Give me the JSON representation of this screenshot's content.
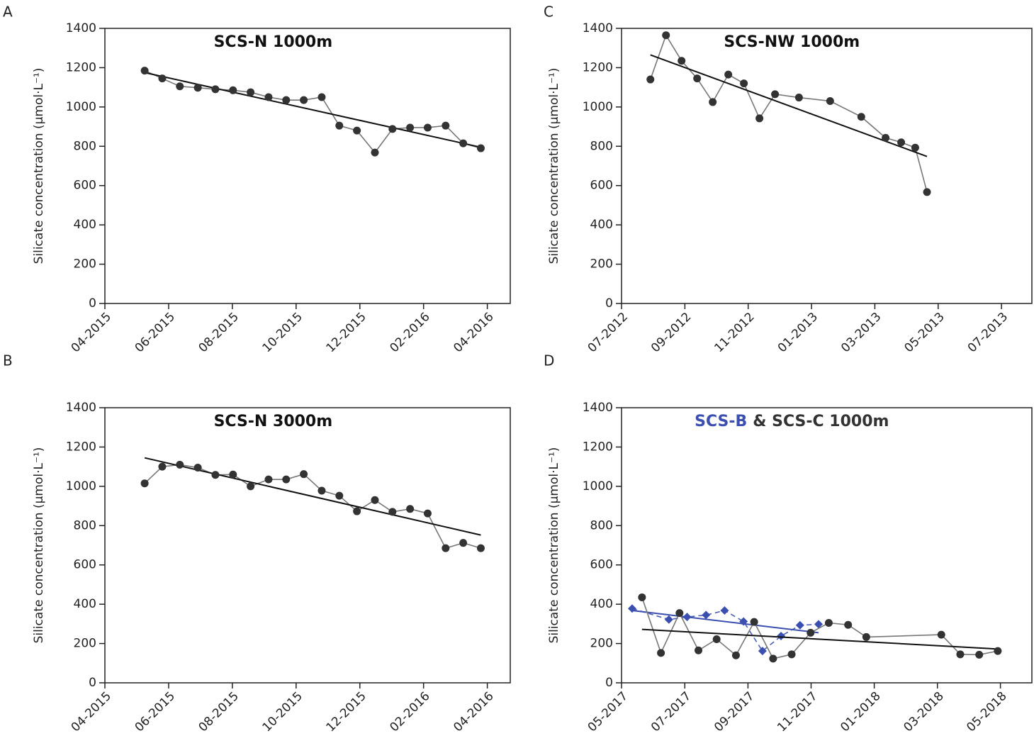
{
  "chart_data": [
    {
      "type": "line",
      "panel": "A",
      "title": [
        "SCS-N 1000m"
      ],
      "ylabel": "Silicate concentration (μmol·L⁻¹)",
      "xlim": [
        2015.25,
        2016.31
      ],
      "ylim": [
        0,
        1400
      ],
      "yticks": [
        0,
        200,
        400,
        600,
        800,
        1000,
        1200,
        1400
      ],
      "xticks": [
        {
          "value": 2015.25,
          "label": "04-2015"
        },
        {
          "value": 2015.4167,
          "label": "06-2015"
        },
        {
          "value": 2015.5833,
          "label": "08-2015"
        },
        {
          "value": 2015.75,
          "label": "10-2015"
        },
        {
          "value": 2015.9167,
          "label": "12-2015"
        },
        {
          "value": 2016.0833,
          "label": "02-2016"
        },
        {
          "value": 2016.25,
          "label": "04-2016"
        }
      ],
      "series": [
        {
          "color": "#333333",
          "line_color": "#777777",
          "marker": "circle",
          "dashed": false,
          "x": [
            2015.354,
            2015.4,
            2015.446,
            2015.493,
            2015.539,
            2015.585,
            2015.631,
            2015.678,
            2015.724,
            2015.77,
            2015.817,
            2015.863,
            2015.909,
            2015.956,
            2016.002,
            2016.048,
            2016.094,
            2016.141,
            2016.187,
            2016.233
          ],
          "values": [
            1185,
            1145,
            1105,
            1098,
            1090,
            1085,
            1075,
            1050,
            1035,
            1035,
            1050,
            905,
            880,
            768,
            888,
            895,
            895,
            905,
            815,
            790
          ],
          "trend": {
            "color": "#111111",
            "x": [
              2015.354,
              2016.233
            ],
            "values": [
              1175,
              795
            ]
          }
        }
      ]
    },
    {
      "type": "line",
      "panel": "B",
      "title": [
        "SCS-N 3000m"
      ],
      "ylabel": "Silicate concentration (μmol·L⁻¹)",
      "xlim": [
        2015.25,
        2016.31
      ],
      "ylim": [
        0,
        1400
      ],
      "yticks": [
        0,
        200,
        400,
        600,
        800,
        1000,
        1200,
        1400
      ],
      "xticks": [
        {
          "value": 2015.25,
          "label": "04-2015"
        },
        {
          "value": 2015.4167,
          "label": "06-2015"
        },
        {
          "value": 2015.5833,
          "label": "08-2015"
        },
        {
          "value": 2015.75,
          "label": "10-2015"
        },
        {
          "value": 2015.9167,
          "label": "12-2015"
        },
        {
          "value": 2016.0833,
          "label": "02-2016"
        },
        {
          "value": 2016.25,
          "label": "04-2016"
        }
      ],
      "series": [
        {
          "color": "#333333",
          "line_color": "#777777",
          "marker": "circle",
          "dashed": false,
          "x": [
            2015.354,
            2015.4,
            2015.446,
            2015.493,
            2015.539,
            2015.585,
            2015.631,
            2015.678,
            2015.724,
            2015.77,
            2015.817,
            2015.863,
            2015.909,
            2015.956,
            2016.002,
            2016.048,
            2016.094,
            2016.141,
            2016.187,
            2016.233
          ],
          "values": [
            1015,
            1100,
            1110,
            1095,
            1058,
            1060,
            1000,
            1035,
            1035,
            1062,
            978,
            952,
            873,
            930,
            870,
            885,
            862,
            685,
            712,
            685
          ],
          "trend": {
            "color": "#111111",
            "x": [
              2015.354,
              2016.233
            ],
            "values": [
              1145,
              752
            ]
          }
        }
      ]
    },
    {
      "type": "line",
      "panel": "C",
      "title": [
        "SCS-NW 1000m"
      ],
      "ylabel": "Silicate concentration (μmol·L⁻¹)",
      "xlim": [
        2012.5,
        2013.58
      ],
      "ylim": [
        0,
        1400
      ],
      "yticks": [
        0,
        200,
        400,
        600,
        800,
        1000,
        1200,
        1400
      ],
      "xticks": [
        {
          "value": 2012.5,
          "label": "07-2012"
        },
        {
          "value": 2012.6667,
          "label": "09-2012"
        },
        {
          "value": 2012.8333,
          "label": "11-2012"
        },
        {
          "value": 2013.0,
          "label": "01-2013"
        },
        {
          "value": 2013.1667,
          "label": "03-2013"
        },
        {
          "value": 2013.3333,
          "label": "05-2013"
        },
        {
          "value": 2013.5,
          "label": "07-2013"
        }
      ],
      "series": [
        {
          "color": "#333333",
          "line_color": "#777777",
          "marker": "circle",
          "dashed": false,
          "x": [
            2012.576,
            2012.617,
            2012.658,
            2012.699,
            2012.74,
            2012.781,
            2012.822,
            2012.863,
            2012.904,
            2012.967,
            2013.049,
            2013.131,
            2013.195,
            2013.236,
            2013.273,
            2013.304
          ],
          "values": [
            1140,
            1365,
            1235,
            1145,
            1025,
            1165,
            1120,
            942,
            1065,
            1048,
            1030,
            950,
            843,
            820,
            793,
            567
          ],
          "trend": {
            "color": "#111111",
            "x": [
              2012.576,
              2013.304
            ],
            "values": [
              1265,
              748
            ]
          }
        }
      ]
    },
    {
      "type": "line",
      "panel": "D",
      "title": [
        "SCS-B",
        "& SCS-C 1000m"
      ],
      "ylabel": "Silicate concentration (μmol·L⁻¹)",
      "xlim": [
        2017.333,
        2018.416
      ],
      "ylim": [
        0,
        1400
      ],
      "yticks": [
        0,
        200,
        400,
        600,
        800,
        1000,
        1200,
        1400
      ],
      "xticks": [
        {
          "value": 2017.333,
          "label": "05-2017"
        },
        {
          "value": 2017.5,
          "label": "07-2017"
        },
        {
          "value": 2017.6667,
          "label": "09-2017"
        },
        {
          "value": 2017.8333,
          "label": "11-2017"
        },
        {
          "value": 2018.0,
          "label": "01-2018"
        },
        {
          "value": 2018.1667,
          "label": "03-2018"
        },
        {
          "value": 2018.333,
          "label": "05-2018"
        }
      ],
      "series": [
        {
          "color": "#3a4fb0",
          "line_color": "#4a5fb5",
          "marker": "diamond",
          "dashed": true,
          "x": [
            2017.361,
            2017.458,
            2017.506,
            2017.556,
            2017.605,
            2017.655,
            2017.705,
            2017.754,
            2017.804,
            2017.853
          ],
          "values": [
            378,
            322,
            335,
            345,
            368,
            312,
            162,
            238,
            293,
            298
          ],
          "trend": {
            "color": "#3a4fb0",
            "x": [
              2017.361,
              2017.853
            ],
            "values": [
              368,
              255
            ]
          }
        },
        {
          "color": "#333333",
          "line_color": "#777777",
          "marker": "circle",
          "dashed": false,
          "x": [
            2017.387,
            2017.437,
            2017.486,
            2017.536,
            2017.584,
            2017.635,
            2017.683,
            2017.733,
            2017.782,
            2017.832,
            2017.88,
            2017.931,
            2017.979,
            2018.177,
            2018.227,
            2018.277,
            2018.326
          ],
          "values": [
            435,
            152,
            355,
            165,
            222,
            140,
            310,
            123,
            145,
            255,
            305,
            295,
            233,
            245,
            145,
            143,
            162
          ],
          "trend": {
            "color": "#111111",
            "x": [
              2017.387,
              2018.326
            ],
            "values": [
              272,
              172
            ]
          }
        }
      ]
    }
  ]
}
